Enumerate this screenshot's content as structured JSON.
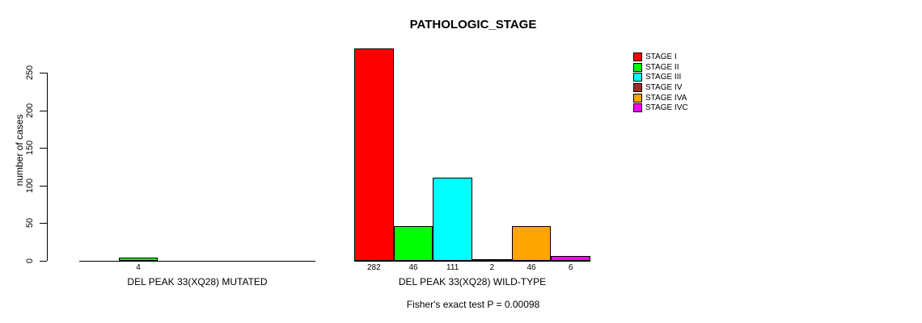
{
  "title": "PATHOLOGIC_STAGE",
  "chart_data": {
    "type": "bar",
    "title": "PATHOLOGIC_STAGE",
    "ylabel": "number of cases",
    "xlabel": "",
    "ylim": [
      0,
      250
    ],
    "yticks": [
      0,
      50,
      100,
      150,
      200,
      250
    ],
    "grid": false,
    "legend_position": "right",
    "groups": [
      "DEL PEAK 33(XQ28) MUTATED",
      "DEL PEAK 33(XQ28) WILD-TYPE"
    ],
    "series": [
      {
        "name": "STAGE I",
        "color": "#FF0000",
        "values": [
          0,
          282
        ]
      },
      {
        "name": "STAGE II",
        "color": "#00FF00",
        "values": [
          4,
          46
        ]
      },
      {
        "name": "STAGE III",
        "color": "#00FFFF",
        "values": [
          0,
          111
        ]
      },
      {
        "name": "STAGE IV",
        "color": "#A52A2A",
        "values": [
          0,
          2
        ]
      },
      {
        "name": "STAGE IVA",
        "color": "#FFA500",
        "values": [
          0,
          46
        ]
      },
      {
        "name": "STAGE IVC",
        "color": "#FF00FF",
        "values": [
          0,
          6
        ]
      }
    ],
    "bar_value_labels": [
      [
        "",
        "4",
        "",
        "",
        "",
        ""
      ],
      [
        "282",
        "46",
        "111",
        "2",
        "46",
        "6"
      ]
    ],
    "annotation": "Fisher's exact test P = 0.00098"
  }
}
